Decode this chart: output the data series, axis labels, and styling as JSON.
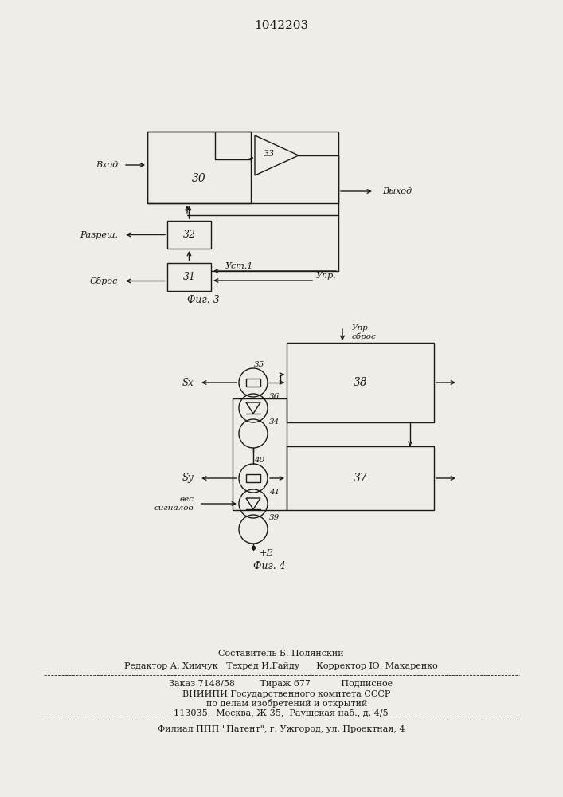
{
  "title": "1042203",
  "bg_color": "#f0ede8",
  "line_color": "#1a1a1a",
  "text_color": "#1a1a1a",
  "fig3_label": "Фиг. 3",
  "fig4_label": "Фиг. 4",
  "footer_line1": "Составитель Б. Полянский",
  "footer_line2": "Редактор А. Химчук   Техред И.Гайду      Корректор Ю. Макаренко",
  "footer_line3": "Заказ 7148/58         Тираж 677           Подписное",
  "footer_line4": "    ВНИИПИ Государственного комитета СССР",
  "footer_line5": "    по делам изобретений и открытий",
  "footer_line6": "113035,  Москва, Ж-35,  Раушская наб., д. 4/5",
  "footer_line7": "Филиал ППП \"Патент\", г. Ужгород, ул. Проектная, 4"
}
